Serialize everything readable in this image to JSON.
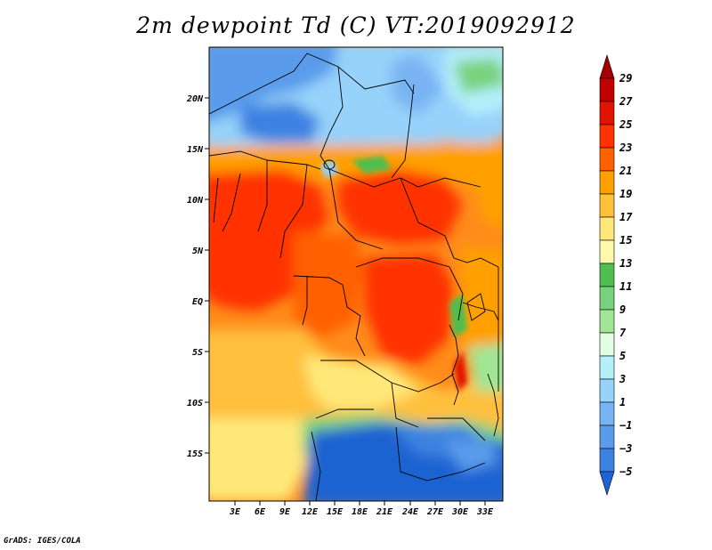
{
  "title": "2m dewpoint Td (C) VT:2019092912",
  "footer": "GrADS: IGES/COLA",
  "map": {
    "lat_labels": [
      "20N",
      "15N",
      "10N",
      "5N",
      "EQ",
      "5S",
      "10S",
      "15S"
    ],
    "lon_labels": [
      "3E",
      "6E",
      "9E",
      "12E",
      "15E",
      "18E",
      "21E",
      "24E",
      "27E",
      "30E",
      "33E"
    ]
  },
  "colorbar": {
    "labels": [
      "29",
      "27",
      "25",
      "23",
      "21",
      "19",
      "17",
      "15",
      "13",
      "11",
      "9",
      "7",
      "5",
      "3",
      "1",
      "-1",
      "-3",
      "-5"
    ],
    "colors": [
      "#1e64d2",
      "#3c82e1",
      "#5a9ceb",
      "#78b4f3",
      "#96d2fa",
      "#b4f0fa",
      "#e1ffe1",
      "#a0e696",
      "#78d27d",
      "#50be50",
      "#fffaaa",
      "#ffe878",
      "#ffc03c",
      "#ffa000",
      "#ff6000",
      "#ff3200",
      "#e11400",
      "#c00000",
      "#a50000"
    ]
  }
}
